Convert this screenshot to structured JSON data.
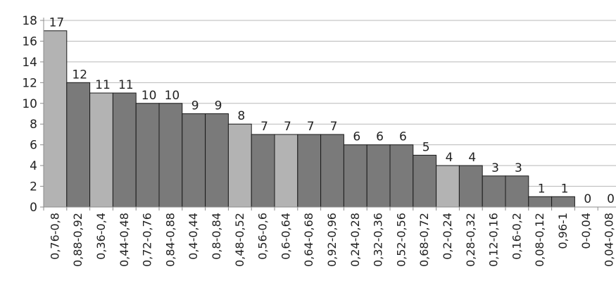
{
  "chart_data": {
    "type": "bar",
    "title": "",
    "xlabel": "",
    "ylabel": "",
    "categories": [
      "0,76-0,8",
      "0,88-0,92",
      "0,36-0,4",
      "0,44-0,48",
      "0,72-0,76",
      "0,84-0,88",
      "0,4-0,44",
      "0,8-0,84",
      "0,48-0,52",
      "0,56-0,6",
      "0,6-0,64",
      "0,64-0,68",
      "0,92-0,96",
      "0,24-0,28",
      "0,32-0,36",
      "0,52-0,56",
      "0,68-0,72",
      "0,2-0,24",
      "0,28-0,32",
      "0,12-0,16",
      "0,16-0,2",
      "0,08-0,12",
      "0,96-1",
      "0-0,04",
      "0,04-0,08"
    ],
    "values": [
      17,
      12,
      11,
      11,
      10,
      10,
      9,
      9,
      8,
      7,
      7,
      7,
      7,
      6,
      6,
      6,
      5,
      4,
      4,
      3,
      3,
      1,
      1,
      0,
      0
    ],
    "highlighted": [
      true,
      false,
      true,
      false,
      false,
      false,
      false,
      false,
      true,
      false,
      true,
      false,
      false,
      false,
      false,
      false,
      false,
      true,
      false,
      false,
      false,
      false,
      false,
      false,
      false
    ],
    "ylim": [
      0,
      18
    ],
    "yticks": [
      "0",
      "2",
      "4",
      "6",
      "8",
      "10",
      "12",
      "14",
      "16",
      "18"
    ],
    "grid": true,
    "legend": "none",
    "colors": {
      "bar": "#7a7a7a",
      "bar_highlight": "#b3b3b3",
      "bar_stroke": "#1a1a1a",
      "grid": "#b8b8b8",
      "axis": "#8c8c8c",
      "text": "#222222"
    }
  }
}
